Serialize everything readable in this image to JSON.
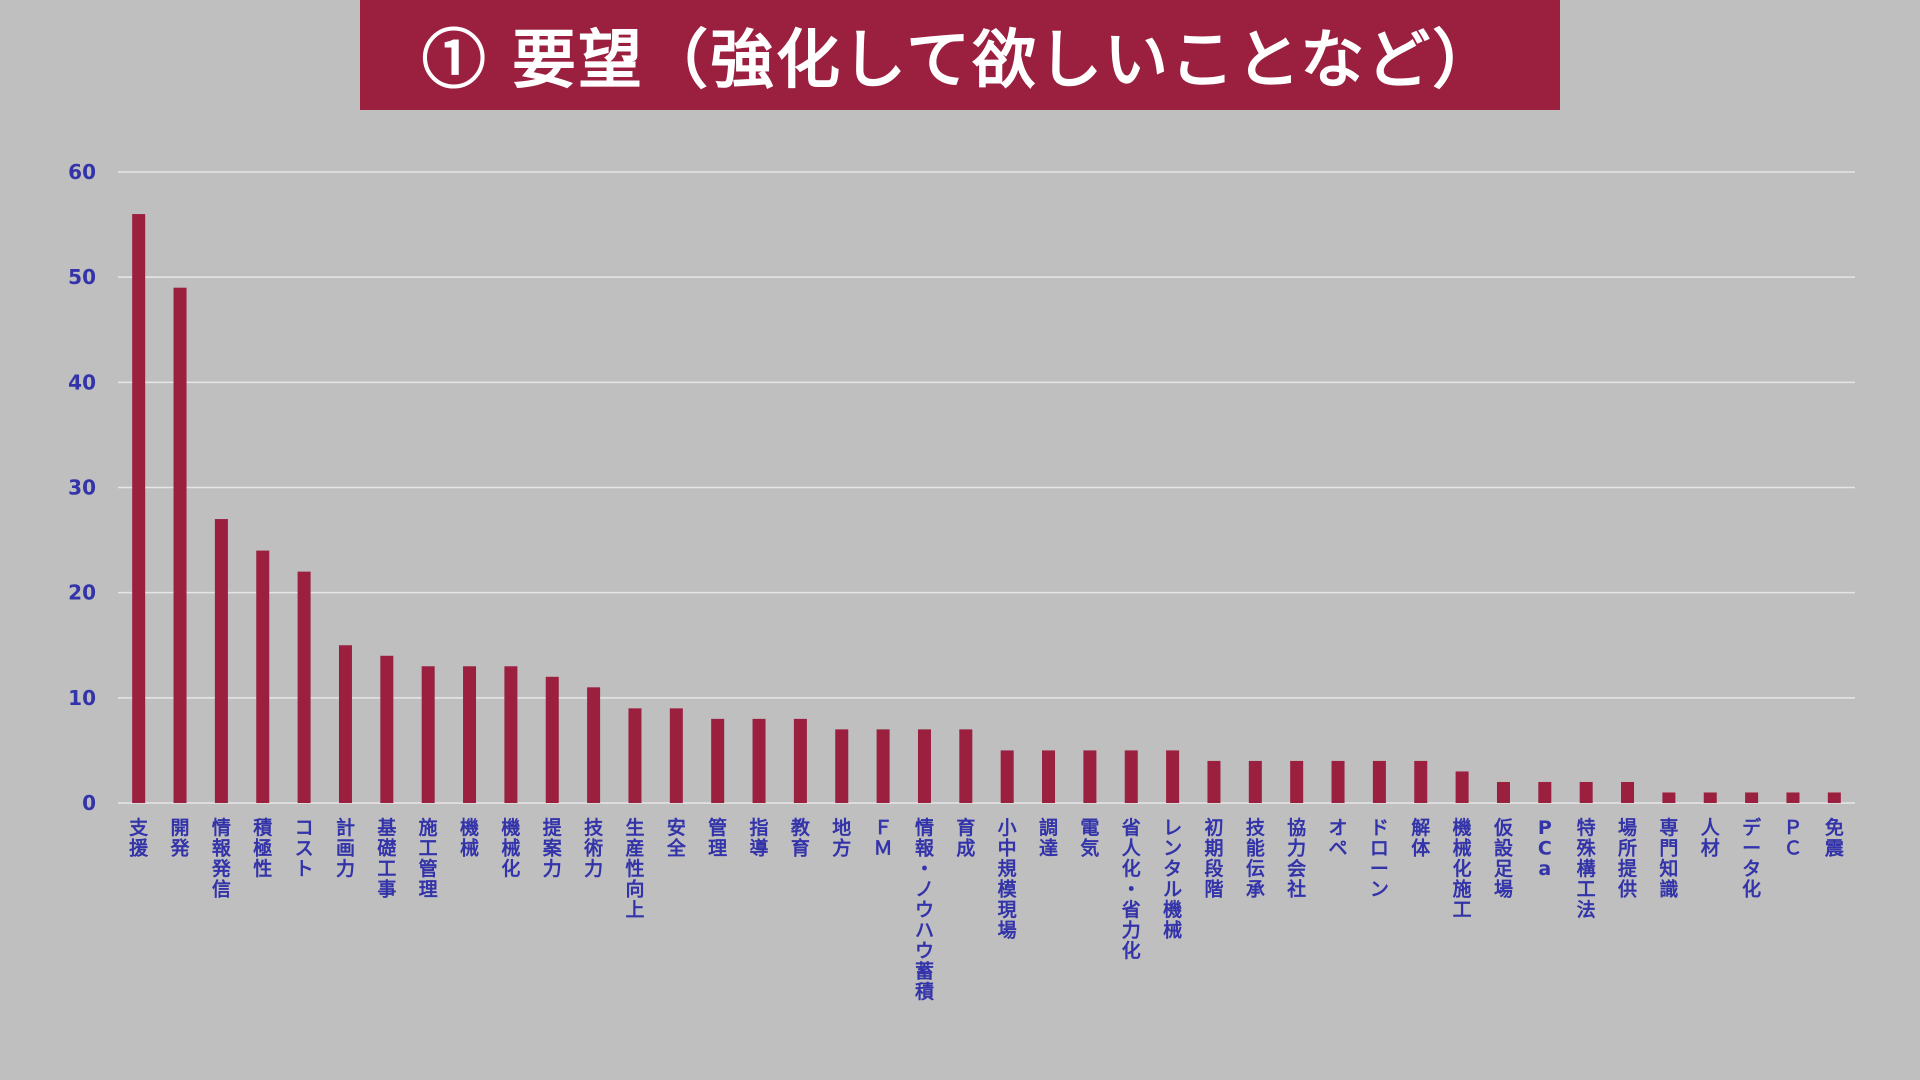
{
  "title": "① 要望（強化して欲しいことなど）",
  "colors": {
    "background": "#bfbfbf",
    "banner": "#9b1f3f",
    "bar": "#9b1f3f",
    "grid": "#e6e6e6",
    "tick_text": "#3333aa"
  },
  "chart_data": {
    "type": "bar",
    "categories": [
      "支援",
      "開発",
      "情報発信",
      "積極性",
      "コスト",
      "計画力",
      "基礎工事",
      "施工管理",
      "機械",
      "機械化",
      "提案力",
      "技術力",
      "生産性向上",
      "安全",
      "管理",
      "指導",
      "教育",
      "地方",
      "ＦＭ",
      "情報・ノウハウ蓄積",
      "育成",
      "小中規模現場",
      "調達",
      "電気",
      "省人化・省力化",
      "レンタル機械",
      "初期段階",
      "技能伝承",
      "協力会社",
      "オペ",
      "ドローン",
      "解体",
      "機械化施工",
      "仮設足場",
      "PCa",
      "特殊構工法",
      "場所提供",
      "専門知識",
      "人材",
      "データ化",
      "ＰＣ",
      "免震"
    ],
    "values": [
      56,
      49,
      27,
      24,
      22,
      15,
      14,
      13,
      13,
      13,
      12,
      11,
      9,
      9,
      8,
      8,
      8,
      7,
      7,
      7,
      7,
      5,
      5,
      5,
      5,
      5,
      4,
      4,
      4,
      4,
      4,
      4,
      3,
      2,
      2,
      2,
      2,
      1,
      1,
      1,
      1,
      1
    ],
    "yticks": [
      0,
      10,
      20,
      30,
      40,
      50,
      60
    ],
    "ylim": [
      0,
      60
    ],
    "grid": true,
    "legend": "none"
  }
}
